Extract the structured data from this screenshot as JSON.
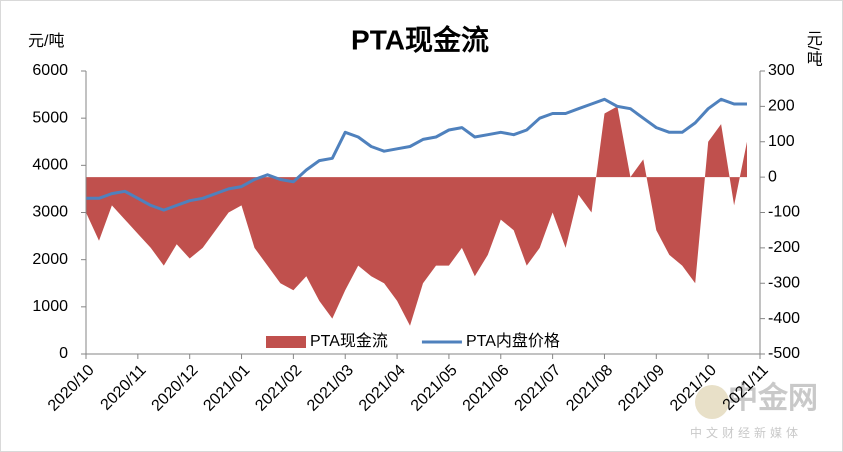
{
  "chart_data": {
    "type": "combo",
    "title": "PTA现金流",
    "y_label": "元/吨",
    "y2_label": "元/吨",
    "x": [
      0,
      0.25,
      0.5,
      0.75,
      1,
      1.25,
      1.5,
      1.75,
      2,
      2.25,
      2.5,
      2.75,
      3,
      3.25,
      3.5,
      3.75,
      4,
      4.25,
      4.5,
      4.75,
      5,
      5.25,
      5.5,
      5.75,
      6,
      6.25,
      6.5,
      6.75,
      7,
      7.25,
      7.5,
      7.75,
      8,
      8.25,
      8.5,
      8.75,
      9,
      9.25,
      9.5,
      9.75,
      10,
      10.25,
      10.5,
      10.75,
      11,
      11.25,
      11.5,
      11.75,
      12,
      12.25,
      12.5,
      12.75
    ],
    "xlim": [
      0,
      13
    ],
    "xticks": [
      {
        "value": 0,
        "label": "2020/10"
      },
      {
        "value": 1,
        "label": "2020/11"
      },
      {
        "value": 2,
        "label": "2020/12"
      },
      {
        "value": 3,
        "label": "2021/01"
      },
      {
        "value": 4,
        "label": "2021/02"
      },
      {
        "value": 5,
        "label": "2021/03"
      },
      {
        "value": 6,
        "label": "2021/04"
      },
      {
        "value": 7,
        "label": "2021/05"
      },
      {
        "value": 8,
        "label": "2021/06"
      },
      {
        "value": 9,
        "label": "2021/07"
      },
      {
        "value": 10,
        "label": "2021/08"
      },
      {
        "value": 11,
        "label": "2021/09"
      },
      {
        "value": 12,
        "label": "2021/10"
      },
      {
        "value": 13,
        "label": "2021/11"
      }
    ],
    "ylim": [
      0,
      6000
    ],
    "yticks": [
      0,
      1000,
      2000,
      3000,
      4000,
      5000,
      6000
    ],
    "y2lim": [
      -500,
      300
    ],
    "y2ticks": [
      -500,
      -400,
      -300,
      -200,
      -100,
      0,
      100,
      200,
      300
    ],
    "series": [
      {
        "name": "PTA现金流",
        "type": "area",
        "axis": "y2",
        "color": "#c0504d",
        "values": [
          -100,
          -180,
          -80,
          -120,
          -160,
          -200,
          -250,
          -190,
          -230,
          -200,
          -150,
          -100,
          -80,
          -200,
          -250,
          -300,
          -320,
          -280,
          -350,
          -400,
          -320,
          -250,
          -280,
          -300,
          -350,
          -420,
          -300,
          -250,
          -250,
          -200,
          -280,
          -220,
          -120,
          -150,
          -250,
          -200,
          -100,
          -200,
          -50,
          -100,
          180,
          200,
          0,
          50,
          -150,
          -220,
          -250,
          -300,
          100,
          150,
          -80,
          100
        ]
      },
      {
        "name": "PTA内盘价格",
        "type": "line",
        "color": "#4f81bd",
        "values": [
          3300,
          3300,
          3400,
          3450,
          3300,
          3150,
          3050,
          3150,
          3250,
          3300,
          3400,
          3500,
          3550,
          3700,
          3800,
          3700,
          3650,
          3900,
          4100,
          4150,
          4700,
          4600,
          4400,
          4300,
          4350,
          4400,
          4550,
          4600,
          4750,
          4800,
          4600,
          4650,
          4700,
          4650,
          4750,
          5000,
          5100,
          5100,
          5200,
          5300,
          5400,
          5250,
          5200,
          5000,
          4800,
          4700,
          4700,
          4900,
          5200,
          5400,
          5300,
          5300
        ]
      }
    ],
    "legend": "bottom",
    "watermark": {
      "name": "中金网",
      "tagline": "中文财经新媒体"
    }
  }
}
